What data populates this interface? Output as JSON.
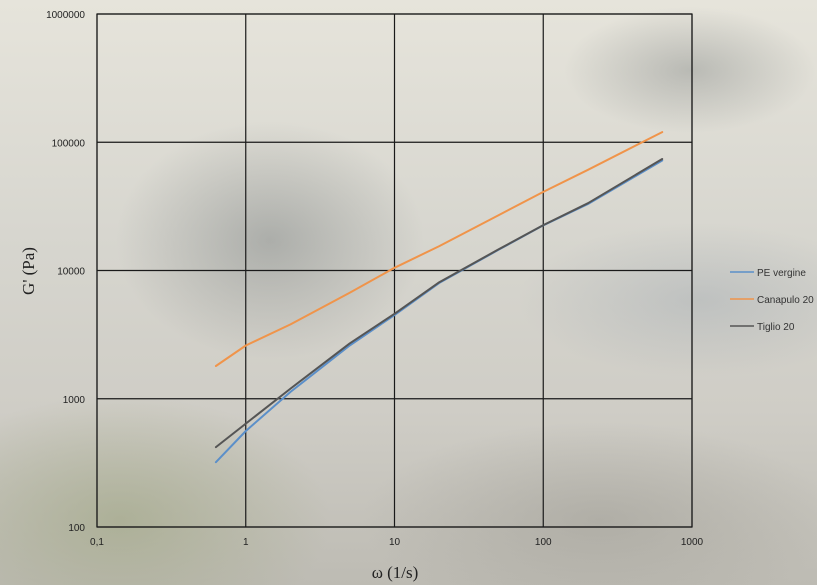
{
  "chart_data": {
    "type": "line",
    "x_scale": "log",
    "y_scale": "log",
    "xlabel": "ω (1/s)",
    "ylabel": "G' (Pa)",
    "xlim": [
      0.1,
      1000
    ],
    "ylim": [
      100,
      1000000
    ],
    "x_tick_labels": [
      "0,1",
      "1",
      "10",
      "100",
      "1000"
    ],
    "y_tick_labels": [
      "100",
      "1000",
      "10000",
      "100000",
      "1000000"
    ],
    "grid": true,
    "legend_position": "right",
    "series": [
      {
        "name": "PE vergine",
        "color": "#5b8fc9",
        "x": [
          0.63,
          1,
          2,
          5,
          10,
          20,
          50,
          100,
          200,
          630
        ],
        "y": [
          320,
          560,
          1130,
          2600,
          4500,
          8000,
          14500,
          22500,
          33000,
          72000
        ]
      },
      {
        "name": "Canapulo 20",
        "color": "#f0944a",
        "x": [
          0.63,
          1,
          2,
          5,
          10,
          20,
          50,
          100,
          200,
          630
        ],
        "y": [
          1800,
          2600,
          3800,
          6700,
          10500,
          15500,
          27000,
          41000,
          61000,
          120000
        ]
      },
      {
        "name": "Tiglio 20",
        "color": "#555555",
        "x": [
          0.63,
          1,
          2,
          5,
          10,
          20,
          50,
          100,
          200,
          630
        ],
        "y": [
          420,
          640,
          1200,
          2700,
          4600,
          8100,
          14600,
          22600,
          33500,
          74000
        ]
      }
    ]
  }
}
